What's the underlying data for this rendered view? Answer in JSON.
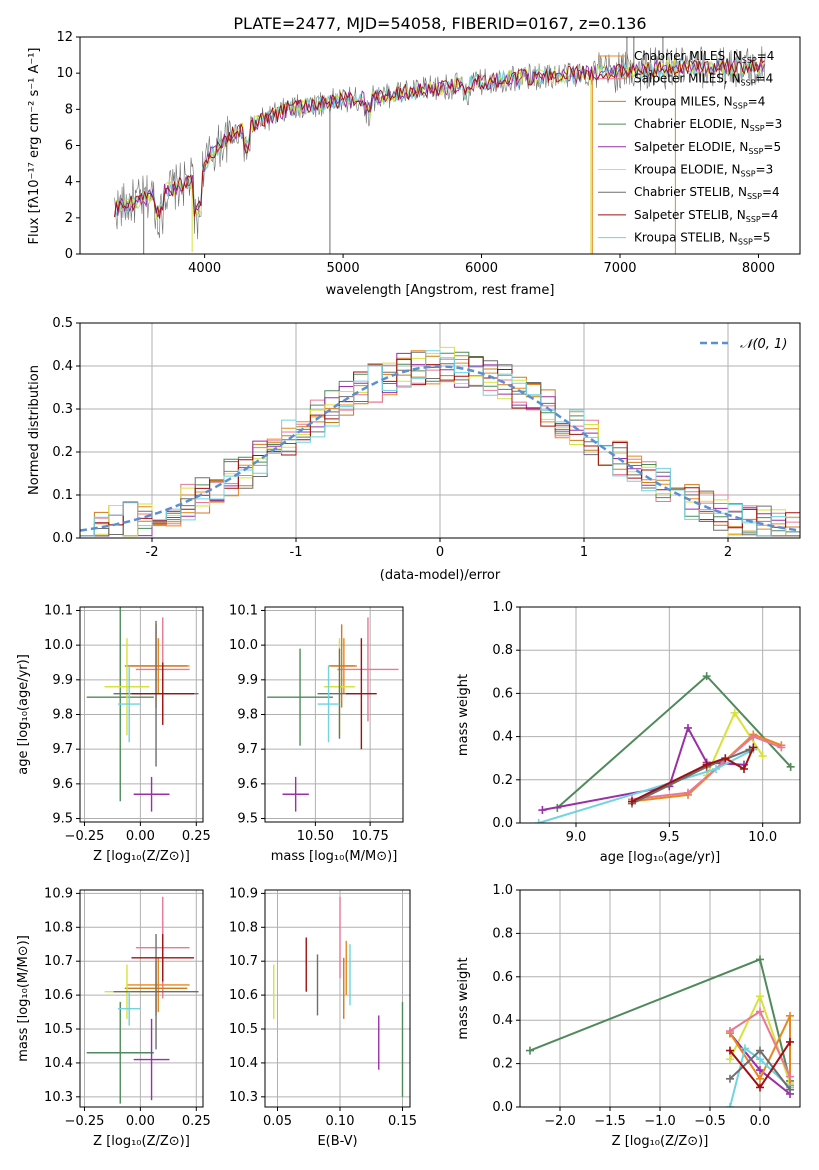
{
  "palette": {
    "chab_miles": "#e8871e",
    "salp_miles": "#e87896",
    "krou_miles": "#d07a1a",
    "chab_elodie": "#4f8a5a",
    "salp_elodie": "#9a2fa8",
    "krou_elodie": "#d7e23a",
    "chab_stelib": "#6e6e6e",
    "salp_stelib": "#a01010",
    "krou_stelib": "#6fd3e0",
    "normal": "#5a8fd6",
    "grid": "#b0b0b0"
  },
  "chart_data": [
    {
      "id": "spectrum",
      "type": "line",
      "title": "PLATE=2477, MJD=54058, FIBERID=0167, z=0.136",
      "xlabel": "wavelength [Angstrom, rest frame]",
      "ylabel": "Flux [fλ10⁻¹⁷ erg cm⁻² s⁻¹ A⁻¹]",
      "xlim": [
        3100,
        8300
      ],
      "ylim": [
        0,
        12
      ],
      "xticks": [
        4000,
        5000,
        6000,
        7000,
        8000
      ],
      "yticks": [
        0,
        2,
        4,
        6,
        8,
        10,
        12
      ],
      "grid": false,
      "legend_position": "right",
      "legend": [
        "Chabrier MILES, N_SSP=4",
        "Salpeter MILES, N_SSP=4",
        "Kroupa MILES, N_SSP=4",
        "Chabrier ELODIE, N_SSP=3",
        "Salpeter ELODIE, N_SSP=5",
        "Kroupa ELODIE, N_SSP=3",
        "Chabrier STELIB, N_SSP=4",
        "Salpeter STELIB, N_SSP=4",
        "Kroupa STELIB, N_SSP=5"
      ],
      "continuum_x": [
        3350,
        3500,
        3650,
        3800,
        3950,
        4050,
        4200,
        4400,
        4600,
        4800,
        5000,
        5200,
        5400,
        5600,
        5800,
        6000,
        6200,
        6400,
        6600,
        6800,
        7000,
        7200,
        7400,
        7600,
        7800,
        8050
      ],
      "continuum_y": [
        2.5,
        2.9,
        3.3,
        3.7,
        4.2,
        5.6,
        6.6,
        7.3,
        8.0,
        8.3,
        8.5,
        8.6,
        8.9,
        9.1,
        9.3,
        9.5,
        9.7,
        9.8,
        9.9,
        10.0,
        10.1,
        10.2,
        10.3,
        10.3,
        10.3,
        10.4
      ]
    },
    {
      "id": "residuals",
      "type": "line",
      "xlabel": "(data-model)/error",
      "ylabel": "Normed distribution",
      "xlim": [
        -2.5,
        2.5
      ],
      "ylim": [
        0,
        0.5
      ],
      "xticks": [
        -2,
        -1,
        0,
        1,
        2
      ],
      "yticks": [
        0.0,
        0.1,
        0.2,
        0.3,
        0.4,
        0.5
      ],
      "grid": true,
      "legend_position": "top-right",
      "legend": [
        "𝒩(0, 1)"
      ]
    },
    {
      "id": "age_vs_Z",
      "type": "scatter",
      "xlabel": "Z [log₁₀(Z/Z⊙)]",
      "ylabel": "age [log₁₀(age/yr)]",
      "xlim": [
        -0.27,
        0.28
      ],
      "ylim": [
        9.49,
        10.11
      ],
      "xticks": [
        -0.25,
        0.0,
        0.25
      ],
      "xticklabels": [
        "−0.25",
        "0.00",
        "0.25"
      ],
      "yticks": [
        9.5,
        9.6,
        9.7,
        9.8,
        9.9,
        10.0,
        10.1
      ],
      "grid": true,
      "points": [
        {
          "x": 0.08,
          "y": 9.94,
          "xerr": 0.14,
          "yerr": 0.08,
          "c": "chab_miles"
        },
        {
          "x": 0.1,
          "y": 9.93,
          "xerr": 0.12,
          "yerr": 0.15,
          "c": "salp_miles"
        },
        {
          "x": 0.07,
          "y": 9.94,
          "xerr": 0.14,
          "yerr": 0.12,
          "c": "krou_miles"
        },
        {
          "x": -0.09,
          "y": 9.85,
          "xerr": 0.15,
          "yerr": 0.3,
          "c": "chab_elodie"
        },
        {
          "x": 0.05,
          "y": 9.57,
          "xerr": 0.08,
          "yerr": 0.05,
          "c": "salp_elodie"
        },
        {
          "x": -0.06,
          "y": 9.88,
          "xerr": 0.1,
          "yerr": 0.14,
          "c": "krou_elodie"
        },
        {
          "x": 0.07,
          "y": 9.86,
          "xerr": 0.19,
          "yerr": 0.21,
          "c": "chab_stelib"
        },
        {
          "x": 0.1,
          "y": 9.86,
          "xerr": 0.14,
          "yerr": 0.09,
          "c": "salp_stelib"
        },
        {
          "x": -0.05,
          "y": 9.83,
          "xerr": 0.05,
          "yerr": 0.11,
          "c": "krou_stelib"
        }
      ]
    },
    {
      "id": "age_vs_mass",
      "type": "scatter",
      "xlabel": "mass [log₁₀(M/M⊙)]",
      "xlim": [
        10.27,
        10.9
      ],
      "ylim": [
        9.49,
        10.11
      ],
      "xticks": [
        10.5,
        10.75
      ],
      "xticklabels": [
        "10.50",
        "10.75"
      ],
      "yticks": [
        9.5,
        9.6,
        9.7,
        9.8,
        9.9,
        10.0,
        10.1
      ],
      "grid": true,
      "points": [
        {
          "x": 10.63,
          "y": 9.94,
          "xerr": 0.06,
          "yerr": 0.08,
          "c": "chab_miles"
        },
        {
          "x": 10.74,
          "y": 9.93,
          "xerr": 0.14,
          "yerr": 0.15,
          "c": "salp_miles"
        },
        {
          "x": 10.62,
          "y": 9.94,
          "xerr": 0.06,
          "yerr": 0.12,
          "c": "krou_miles"
        },
        {
          "x": 10.43,
          "y": 9.85,
          "xerr": 0.15,
          "yerr": 0.14,
          "c": "chab_elodie"
        },
        {
          "x": 10.41,
          "y": 9.57,
          "xerr": 0.06,
          "yerr": 0.05,
          "c": "salp_elodie"
        },
        {
          "x": 10.61,
          "y": 9.88,
          "xerr": 0.07,
          "yerr": 0.14,
          "c": "krou_elodie"
        },
        {
          "x": 10.61,
          "y": 9.86,
          "xerr": 0.1,
          "yerr": 0.13,
          "c": "chab_stelib"
        },
        {
          "x": 10.71,
          "y": 9.86,
          "xerr": 0.07,
          "yerr": 0.16,
          "c": "salp_stelib"
        },
        {
          "x": 10.56,
          "y": 9.83,
          "xerr": 0.05,
          "yerr": 0.11,
          "c": "krou_stelib"
        }
      ]
    },
    {
      "id": "massweight_vs_age",
      "type": "line",
      "xlabel": "age [log₁₀(age/yr)]",
      "ylabel": "mass weight",
      "xlim": [
        8.7,
        10.2
      ],
      "ylim": [
        0.0,
        1.0
      ],
      "xticks": [
        9.0,
        9.5,
        10.0
      ],
      "xticklabels": [
        "9.0",
        "9.5",
        "10.0"
      ],
      "yticks": [
        0.0,
        0.2,
        0.4,
        0.6,
        0.8,
        1.0
      ],
      "grid": true,
      "series": [
        {
          "c": "chab_elodie",
          "x": [
            8.9,
            9.7,
            10.15
          ],
          "y": [
            0.07,
            0.68,
            0.26
          ]
        },
        {
          "c": "salp_elodie",
          "x": [
            8.82,
            9.5,
            9.6,
            9.7,
            9.9
          ],
          "y": [
            0.06,
            0.17,
            0.44,
            0.28,
            0.27
          ]
        },
        {
          "c": "krou_elodie",
          "x": [
            9.7,
            9.85,
            10.0
          ],
          "y": [
            0.22,
            0.51,
            0.31
          ]
        },
        {
          "c": "chab_miles",
          "x": [
            9.3,
            9.6,
            9.95,
            10.1
          ],
          "y": [
            0.1,
            0.13,
            0.41,
            0.36
          ]
        },
        {
          "c": "salp_miles",
          "x": [
            9.3,
            9.6,
            9.95,
            10.1
          ],
          "y": [
            0.11,
            0.14,
            0.4,
            0.35
          ]
        },
        {
          "c": "krou_stelib",
          "x": [
            8.8,
            9.75,
            9.95
          ],
          "y": [
            0.0,
            0.25,
            0.34
          ]
        },
        {
          "c": "chab_stelib",
          "x": [
            9.3,
            9.7,
            9.93
          ],
          "y": [
            0.09,
            0.26,
            0.34
          ]
        },
        {
          "c": "salp_stelib",
          "x": [
            9.3,
            9.7,
            9.8,
            9.9,
            9.95
          ],
          "y": [
            0.1,
            0.27,
            0.3,
            0.25,
            0.35
          ]
        }
      ]
    },
    {
      "id": "mass_vs_Z",
      "type": "scatter",
      "xlabel": "Z [log₁₀(Z/Z⊙)]",
      "ylabel": "mass [log₁₀(M/M⊙)]",
      "xlim": [
        -0.27,
        0.28
      ],
      "ylim": [
        10.27,
        10.91
      ],
      "xticks": [
        -0.25,
        0.0,
        0.25
      ],
      "xticklabels": [
        "−0.25",
        "0.00",
        "0.25"
      ],
      "yticks": [
        10.3,
        10.4,
        10.5,
        10.6,
        10.7,
        10.8,
        10.9
      ],
      "grid": true,
      "points": [
        {
          "x": 0.08,
          "y": 10.63,
          "xerr": 0.14,
          "yerr": 0.08,
          "c": "chab_miles"
        },
        {
          "x": 0.1,
          "y": 10.74,
          "xerr": 0.12,
          "yerr": 0.15,
          "c": "salp_miles"
        },
        {
          "x": 0.07,
          "y": 10.62,
          "xerr": 0.14,
          "yerr": 0.08,
          "c": "krou_miles"
        },
        {
          "x": -0.09,
          "y": 10.43,
          "xerr": 0.15,
          "yerr": 0.15,
          "c": "chab_elodie"
        },
        {
          "x": 0.05,
          "y": 10.41,
          "xerr": 0.08,
          "yerr": 0.12,
          "c": "salp_elodie"
        },
        {
          "x": -0.06,
          "y": 10.61,
          "xerr": 0.1,
          "yerr": 0.08,
          "c": "krou_elodie"
        },
        {
          "x": 0.07,
          "y": 10.61,
          "xerr": 0.19,
          "yerr": 0.17,
          "c": "chab_stelib"
        },
        {
          "x": 0.1,
          "y": 10.71,
          "xerr": 0.14,
          "yerr": 0.07,
          "c": "salp_stelib"
        },
        {
          "x": -0.05,
          "y": 10.56,
          "xerr": 0.05,
          "yerr": 0.05,
          "c": "krou_stelib"
        }
      ]
    },
    {
      "id": "mass_vs_ebv",
      "type": "scatter",
      "xlabel": "E(B-V)",
      "xlim": [
        0.04,
        0.156
      ],
      "ylim": [
        10.27,
        10.91
      ],
      "xticks": [
        0.05,
        0.1,
        0.15
      ],
      "xticklabels": [
        "0.05",
        "0.10",
        "0.15"
      ],
      "yticks": [
        10.3,
        10.4,
        10.5,
        10.6,
        10.7,
        10.8,
        10.9
      ],
      "grid": true,
      "points": [
        {
          "x": 0.105,
          "y": 10.68,
          "xerr": 0,
          "yerr": 0.08,
          "c": "chab_miles"
        },
        {
          "x": 0.1,
          "y": 10.77,
          "xerr": 0,
          "yerr": 0.12,
          "c": "salp_miles"
        },
        {
          "x": 0.103,
          "y": 10.62,
          "xerr": 0,
          "yerr": 0.09,
          "c": "krou_miles"
        },
        {
          "x": 0.15,
          "y": 10.44,
          "xerr": 0,
          "yerr": 0.14,
          "c": "chab_elodie"
        },
        {
          "x": 0.131,
          "y": 10.46,
          "xerr": 0,
          "yerr": 0.08,
          "c": "salp_elodie"
        },
        {
          "x": 0.047,
          "y": 10.61,
          "xerr": 0,
          "yerr": 0.08,
          "c": "krou_elodie"
        },
        {
          "x": 0.082,
          "y": 10.63,
          "xerr": 0,
          "yerr": 0.09,
          "c": "chab_stelib"
        },
        {
          "x": 0.073,
          "y": 10.69,
          "xerr": 0,
          "yerr": 0.08,
          "c": "salp_stelib"
        },
        {
          "x": 0.108,
          "y": 10.66,
          "xerr": 0,
          "yerr": 0.09,
          "c": "krou_stelib"
        }
      ]
    },
    {
      "id": "massweight_vs_Z",
      "type": "line",
      "xlabel": "Z [log₁₀(Z/Z⊙)]",
      "ylabel": "mass weight",
      "xlim": [
        -2.4,
        0.4
      ],
      "ylim": [
        0.0,
        1.0
      ],
      "xticks": [
        -2.0,
        -1.5,
        -1.0,
        -0.5,
        0.0
      ],
      "xticklabels": [
        "−2.0",
        "−1.5",
        "−1.0",
        "−0.5",
        "0.0"
      ],
      "yticks": [
        0.0,
        0.2,
        0.4,
        0.6,
        0.8,
        1.0
      ],
      "grid": true,
      "series": [
        {
          "c": "chab_elodie",
          "x": [
            -2.3,
            0.0,
            0.3
          ],
          "y": [
            0.26,
            0.68,
            0.12
          ]
        },
        {
          "c": "krou_elodie",
          "x": [
            -0.3,
            0.0,
            0.3
          ],
          "y": [
            0.22,
            0.51,
            0.11
          ]
        },
        {
          "c": "salp_elodie",
          "x": [
            -0.3,
            0.0,
            0.3
          ],
          "y": [
            0.34,
            0.17,
            0.06
          ]
        },
        {
          "c": "chab_miles",
          "x": [
            0.3,
            0.3,
            0.0,
            -0.3
          ],
          "y": [
            0.1,
            0.42,
            0.13,
            0.34
          ]
        },
        {
          "c": "salp_miles",
          "x": [
            -0.3,
            0.0,
            0.3
          ],
          "y": [
            0.35,
            0.44,
            0.14
          ]
        },
        {
          "c": "krou_stelib",
          "x": [
            -0.3,
            -0.15,
            0.0,
            0.3
          ],
          "y": [
            0.0,
            0.27,
            0.22,
            0.09
          ]
        },
        {
          "c": "chab_stelib",
          "x": [
            -0.3,
            0.0,
            0.3
          ],
          "y": [
            0.13,
            0.26,
            0.08
          ]
        },
        {
          "c": "salp_stelib",
          "x": [
            -0.3,
            0.0,
            0.3
          ],
          "y": [
            0.26,
            0.09,
            0.3
          ]
        }
      ]
    }
  ]
}
